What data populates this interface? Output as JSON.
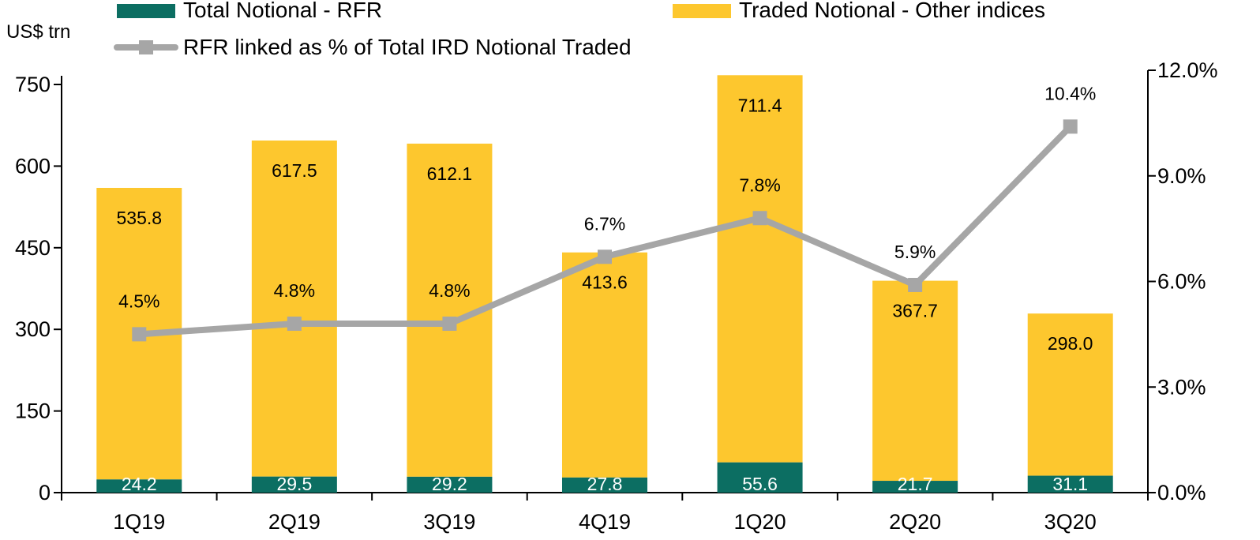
{
  "chart_data": {
    "type": "bar",
    "stacked": true,
    "categories": [
      "1Q19",
      "2Q19",
      "3Q19",
      "4Q19",
      "1Q20",
      "2Q20",
      "3Q20"
    ],
    "series": [
      {
        "name": "Total Notional - RFR",
        "kind": "bar",
        "color": "#0c6e62",
        "values": [
          24.2,
          29.5,
          29.2,
          27.8,
          55.6,
          21.7,
          31.1
        ]
      },
      {
        "name": "Traded Notional - Other indices",
        "kind": "bar",
        "color": "#fdc72e",
        "values": [
          535.8,
          617.5,
          612.1,
          413.6,
          711.4,
          367.7,
          298.0
        ]
      },
      {
        "name": "RFR linked as % of Total IRD Notional Traded",
        "kind": "line",
        "axis": "right",
        "color": "#a6a6a6",
        "values": [
          4.5,
          4.8,
          4.8,
          6.7,
          7.8,
          5.9,
          10.4
        ]
      }
    ],
    "left_axis": {
      "label": "US$ trn",
      "ticks": [
        "0",
        "150",
        "300",
        "450",
        "600",
        "750"
      ]
    },
    "right_axis": {
      "ticks": [
        "0.0%",
        "3.0%",
        "6.0%",
        "9.0%",
        "12.0%"
      ]
    },
    "bar_labels": {
      "rfr": [
        "24.2",
        "29.5",
        "29.2",
        "27.8",
        "55.6",
        "21.7",
        "31.1"
      ],
      "other": [
        "535.8",
        "617.5",
        "612.1",
        "413.6",
        "711.4",
        "367.7",
        "298.0"
      ]
    },
    "line_labels": [
      "4.5%",
      "4.8%",
      "4.8%",
      "6.7%",
      "7.8%",
      "5.9%",
      "10.4%"
    ],
    "legend": "top",
    "grid": false
  }
}
